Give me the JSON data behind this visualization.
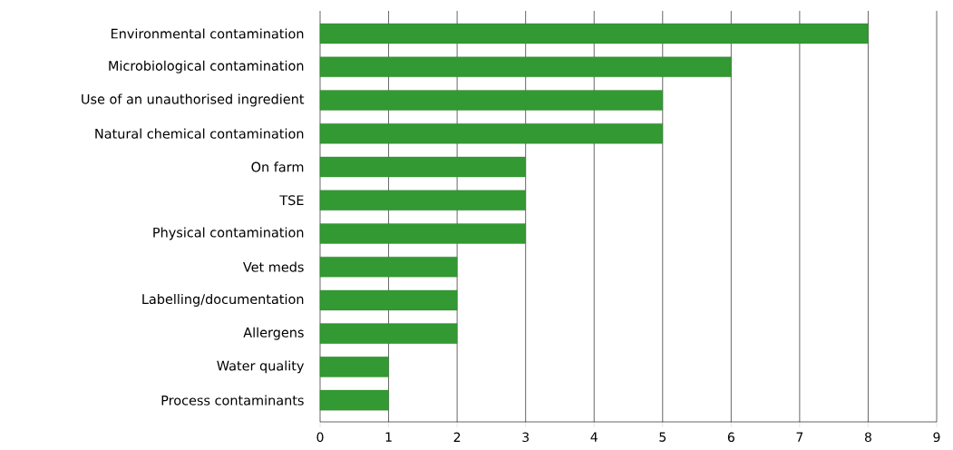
{
  "chart_data": {
    "type": "bar",
    "orientation": "horizontal",
    "categories": [
      "Environmental contamination",
      "Microbiological contamination",
      "Use of an unauthorised ingredient",
      "Natural chemical contamination",
      "On farm",
      "TSE",
      "Physical contamination",
      "Vet meds",
      "Labelling/documentation",
      "Allergens",
      "Water quality",
      "Process contaminants"
    ],
    "values": [
      8,
      6,
      5,
      5,
      3,
      3,
      3,
      2,
      2,
      2,
      1,
      1
    ],
    "color": "#339933",
    "xlim": [
      0,
      9
    ],
    "xticks": [
      0,
      1,
      2,
      3,
      4,
      5,
      6,
      7,
      8,
      9
    ],
    "grid": "x"
  }
}
